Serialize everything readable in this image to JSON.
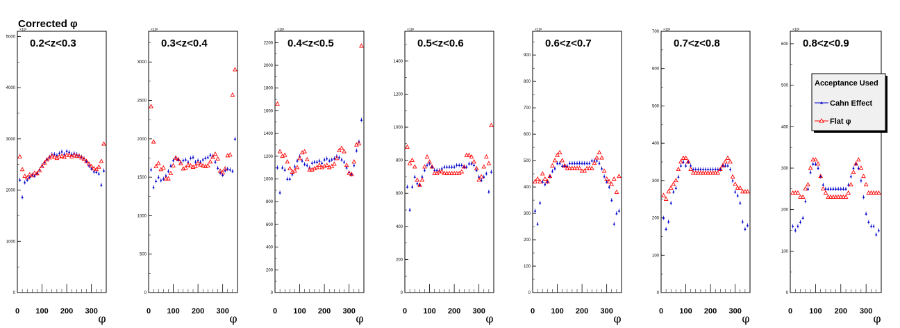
{
  "chart_data": {
    "title": "Corrected φ",
    "type": "scatter",
    "xlabel": "φ",
    "ylim_multiplier": "×10³",
    "x_tick_labels": [
      "0",
      "100",
      "200",
      "300"
    ],
    "legend": {
      "title": "Acceptance Used",
      "placement": "right, inside last panel",
      "entries": [
        {
          "label": "Cahn Effect",
          "color": "#0000cc",
          "marker": "filled-triangle-with-error-bar"
        },
        {
          "label": "Flat φ",
          "color": "#ff0000",
          "marker": "open-triangle"
        }
      ]
    },
    "x": [
      10,
      20,
      30,
      40,
      50,
      60,
      70,
      80,
      90,
      100,
      110,
      120,
      130,
      140,
      150,
      160,
      170,
      180,
      190,
      200,
      210,
      220,
      230,
      240,
      250,
      260,
      270,
      280,
      290,
      300,
      310,
      320,
      330,
      340,
      350
    ],
    "panels": [
      {
        "title": "0.2<z<0.3",
        "ylim": [
          0,
          5100
        ],
        "y_ticks": [
          "1000",
          "2000",
          "3000",
          "4000",
          "5000"
        ],
        "series": [
          {
            "name": "Cahn Effect",
            "values": [
              2200,
              1860,
              2150,
              2200,
              2250,
              2300,
              2280,
              2330,
              2400,
              2480,
              2540,
              2600,
              2650,
              2700,
              2700,
              2680,
              2720,
              2750,
              2700,
              2760,
              2740,
              2700,
              2720,
              2700,
              2680,
              2650,
              2620,
              2560,
              2480,
              2420,
              2360,
              2350,
              2320,
              2100,
              2380
            ]
          },
          {
            "name": "Flat φ",
            "values": [
              2650,
              2400,
              2270,
              2240,
              2300,
              2280,
              2330,
              2320,
              2380,
              2460,
              2530,
              2590,
              2630,
              2670,
              2640,
              2620,
              2650,
              2660,
              2640,
              2680,
              2680,
              2650,
              2680,
              2660,
              2660,
              2630,
              2600,
              2560,
              2510,
              2460,
              2420,
              2400,
              2450,
              2560,
              2900
            ]
          }
        ]
      },
      {
        "title": "0.3<z<0.4",
        "ylim": [
          0,
          3400
        ],
        "y_ticks": [
          "500",
          "1000",
          "1500",
          "2000",
          "2500",
          "3000"
        ],
        "series": [
          {
            "name": "Cahn Effect",
            "values": [
              1600,
              1370,
              1450,
              1500,
              1460,
              1480,
              1520,
              1580,
              1650,
              1720,
              1760,
              1730,
              1700,
              1720,
              1730,
              1700,
              1750,
              1760,
              1700,
              1720,
              1700,
              1730,
              1750,
              1760,
              1790,
              1780,
              1700,
              1620,
              1560,
              1530,
              1590,
              1610,
              1600,
              1580,
              2000
            ]
          },
          {
            "name": "Flat φ",
            "values": [
              2420,
              1960,
              1640,
              1680,
              1600,
              1620,
              1480,
              1480,
              1550,
              1650,
              1750,
              1730,
              1680,
              1610,
              1620,
              1660,
              1650,
              1630,
              1640,
              1680,
              1660,
              1650,
              1640,
              1650,
              1700,
              1760,
              1800,
              1740,
              1580,
              1560,
              1610,
              1780,
              1790,
              2570,
              2900
            ]
          }
        ]
      },
      {
        "title": "0.4<z<0.5",
        "ylim": [
          0,
          2300
        ],
        "y_ticks": [
          "200",
          "400",
          "600",
          "800",
          "1000",
          "1200",
          "1400",
          "1600",
          "1800",
          "2000",
          "2200"
        ],
        "series": [
          {
            "name": "Cahn Effect",
            "values": [
              1100,
              880,
              1100,
              1080,
              1000,
              1000,
              1040,
              1110,
              1160,
              1200,
              1160,
              1130,
              1120,
              1100,
              1140,
              1150,
              1150,
              1160,
              1140,
              1170,
              1180,
              1160,
              1170,
              1180,
              1200,
              1190,
              1170,
              1150,
              1100,
              1060,
              1040,
              1120,
              1250,
              1330,
              1520
            ]
          },
          {
            "name": "Flat φ",
            "values": [
              1660,
              1240,
              1200,
              1210,
              1150,
              1090,
              1060,
              1070,
              1100,
              1180,
              1230,
              1240,
              1170,
              1080,
              1080,
              1090,
              1100,
              1120,
              1100,
              1110,
              1120,
              1100,
              1110,
              1130,
              1180,
              1250,
              1270,
              1240,
              1120,
              1050,
              1040,
              1150,
              1300,
              1310,
              2170
            ]
          }
        ]
      },
      {
        "title": "0.5<z<0.6",
        "ylim": [
          0,
          1580
        ],
        "y_ticks": [
          "200",
          "400",
          "600",
          "800",
          "1000",
          "1200",
          "1400"
        ],
        "series": [
          {
            "name": "Cahn Effect",
            "values": [
              640,
              500,
              640,
              700,
              660,
              650,
              700,
              740,
              770,
              780,
              760,
              740,
              740,
              740,
              750,
              760,
              760,
              760,
              760,
              760,
              770,
              770,
              770,
              760,
              760,
              780,
              780,
              770,
              740,
              700,
              680,
              700,
              720,
              610,
              730
            ]
          },
          {
            "name": "Flat φ",
            "values": [
              880,
              780,
              800,
              760,
              680,
              650,
              680,
              760,
              820,
              790,
              760,
              720,
              720,
              730,
              730,
              720,
              720,
              720,
              720,
              720,
              720,
              720,
              730,
              760,
              830,
              830,
              820,
              790,
              750,
              680,
              700,
              760,
              820,
              780,
              1010
            ]
          }
        ]
      },
      {
        "title": "0.6<z<0.7",
        "ylim": [
          0,
          990
        ],
        "y_ticks": [
          "100",
          "200",
          "300",
          "400",
          "500",
          "600",
          "700",
          "800",
          "900"
        ],
        "series": [
          {
            "name": "Cahn Effect",
            "values": [
              310,
              260,
              340,
              420,
              410,
              420,
              440,
              460,
              470,
              490,
              490,
              480,
              480,
              480,
              490,
              490,
              490,
              490,
              490,
              490,
              490,
              490,
              490,
              500,
              500,
              500,
              490,
              470,
              440,
              420,
              400,
              350,
              260,
              300,
              310
            ]
          },
          {
            "name": "Flat φ",
            "values": [
              420,
              430,
              420,
              450,
              430,
              420,
              440,
              480,
              500,
              520,
              530,
              500,
              480,
              470,
              470,
              470,
              470,
              470,
              470,
              460,
              460,
              470,
              470,
              470,
              490,
              510,
              530,
              510,
              460,
              430,
              420,
              410,
              430,
              380,
              440
            ]
          }
        ]
      },
      {
        "title": "0.7<z<0.8",
        "ylim": [
          0,
          700
        ],
        "y_ticks": [
          "100",
          "200",
          "300",
          "400",
          "500",
          "600",
          "700"
        ],
        "series": [
          {
            "name": "Cahn Effect",
            "values": [
              200,
              170,
              190,
              240,
              270,
              280,
              310,
              340,
              350,
              340,
              350,
              340,
              330,
              330,
              330,
              330,
              330,
              330,
              330,
              330,
              330,
              330,
              330,
              330,
              340,
              340,
              340,
              330,
              300,
              270,
              260,
              240,
              190,
              170,
              180
            ]
          },
          {
            "name": "Flat φ",
            "values": [
              260,
              250,
              270,
              280,
              290,
              300,
              330,
              350,
              360,
              360,
              350,
              330,
              320,
              320,
              320,
              320,
              320,
              320,
              320,
              320,
              320,
              320,
              320,
              330,
              340,
              350,
              360,
              350,
              310,
              290,
              280,
              280,
              270,
              270,
              270
            ]
          }
        ]
      },
      {
        "title": "0.8<z<0.9",
        "ylim": [
          0,
          630
        ],
        "y_ticks": [
          "100",
          "200",
          "300",
          "400",
          "500",
          "600"
        ],
        "series": [
          {
            "name": "Cahn Effect",
            "values": [
              160,
              150,
              160,
              170,
              180,
              220,
              250,
              290,
              310,
              310,
              300,
              280,
              260,
              250,
              250,
              250,
              250,
              250,
              250,
              250,
              250,
              250,
              260,
              280,
              300,
              310,
              300,
              270,
              230,
              190,
              170,
              160,
              160,
              140,
              150
            ]
          },
          {
            "name": "Flat φ",
            "values": [
              240,
              240,
              240,
              230,
              230,
              250,
              260,
              300,
              320,
              320,
              310,
              280,
              250,
              240,
              230,
              230,
              230,
              230,
              230,
              230,
              230,
              230,
              240,
              260,
              290,
              310,
              320,
              300,
              280,
              260,
              240,
              240,
              240,
              240,
              240
            ]
          }
        ]
      }
    ]
  }
}
